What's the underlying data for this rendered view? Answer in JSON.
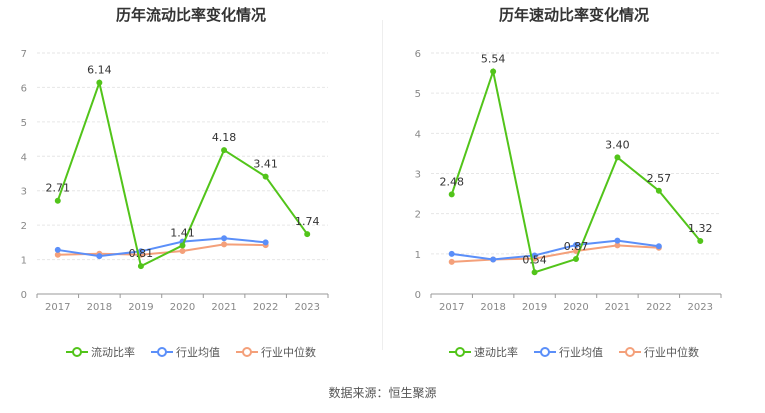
{
  "chart_data": [
    {
      "type": "line",
      "title": "历年流动比率变化情况",
      "categories": [
        "2017",
        "2018",
        "2019",
        "2020",
        "2021",
        "2022",
        "2023"
      ],
      "ylim": [
        0,
        7
      ],
      "yticks": [
        0,
        1,
        2,
        3,
        4,
        5,
        6,
        7
      ],
      "grid": true,
      "legend_position": "bottom",
      "series": [
        {
          "name": "流动比率",
          "color": "#52c41a",
          "values": [
            2.71,
            6.14,
            0.81,
            1.41,
            4.18,
            3.41,
            1.74
          ],
          "labels": [
            "2.71",
            "6.14",
            "0.81",
            "1.41",
            "4.18",
            "3.41",
            "1.74"
          ]
        },
        {
          "name": "行业均值",
          "color": "#5b8ff9",
          "values": [
            1.28,
            1.1,
            1.24,
            1.52,
            1.62,
            1.5,
            null
          ]
        },
        {
          "name": "行业中位数",
          "color": "#f4a07a",
          "values": [
            1.14,
            1.17,
            1.14,
            1.25,
            1.44,
            1.42,
            null
          ]
        }
      ]
    },
    {
      "type": "line",
      "title": "历年速动比率变化情况",
      "categories": [
        "2017",
        "2018",
        "2019",
        "2020",
        "2021",
        "2022",
        "2023"
      ],
      "ylim": [
        0,
        6
      ],
      "yticks": [
        0,
        1,
        2,
        3,
        4,
        5,
        6
      ],
      "grid": true,
      "legend_position": "bottom",
      "series": [
        {
          "name": "速动比率",
          "color": "#52c41a",
          "values": [
            2.48,
            5.54,
            0.54,
            0.87,
            3.4,
            2.57,
            1.32
          ],
          "labels": [
            "2.48",
            "5.54",
            "0.54",
            "0.87",
            "3.40",
            "2.57",
            "1.32"
          ]
        },
        {
          "name": "行业均值",
          "color": "#5b8ff9",
          "values": [
            1.0,
            0.86,
            0.96,
            1.22,
            1.33,
            1.19,
            null
          ]
        },
        {
          "name": "行业中位数",
          "color": "#f4a07a",
          "values": [
            0.8,
            0.86,
            0.88,
            1.07,
            1.21,
            1.15,
            null
          ]
        }
      ]
    }
  ],
  "footer": {
    "source": "数据来源：恒生聚源"
  }
}
